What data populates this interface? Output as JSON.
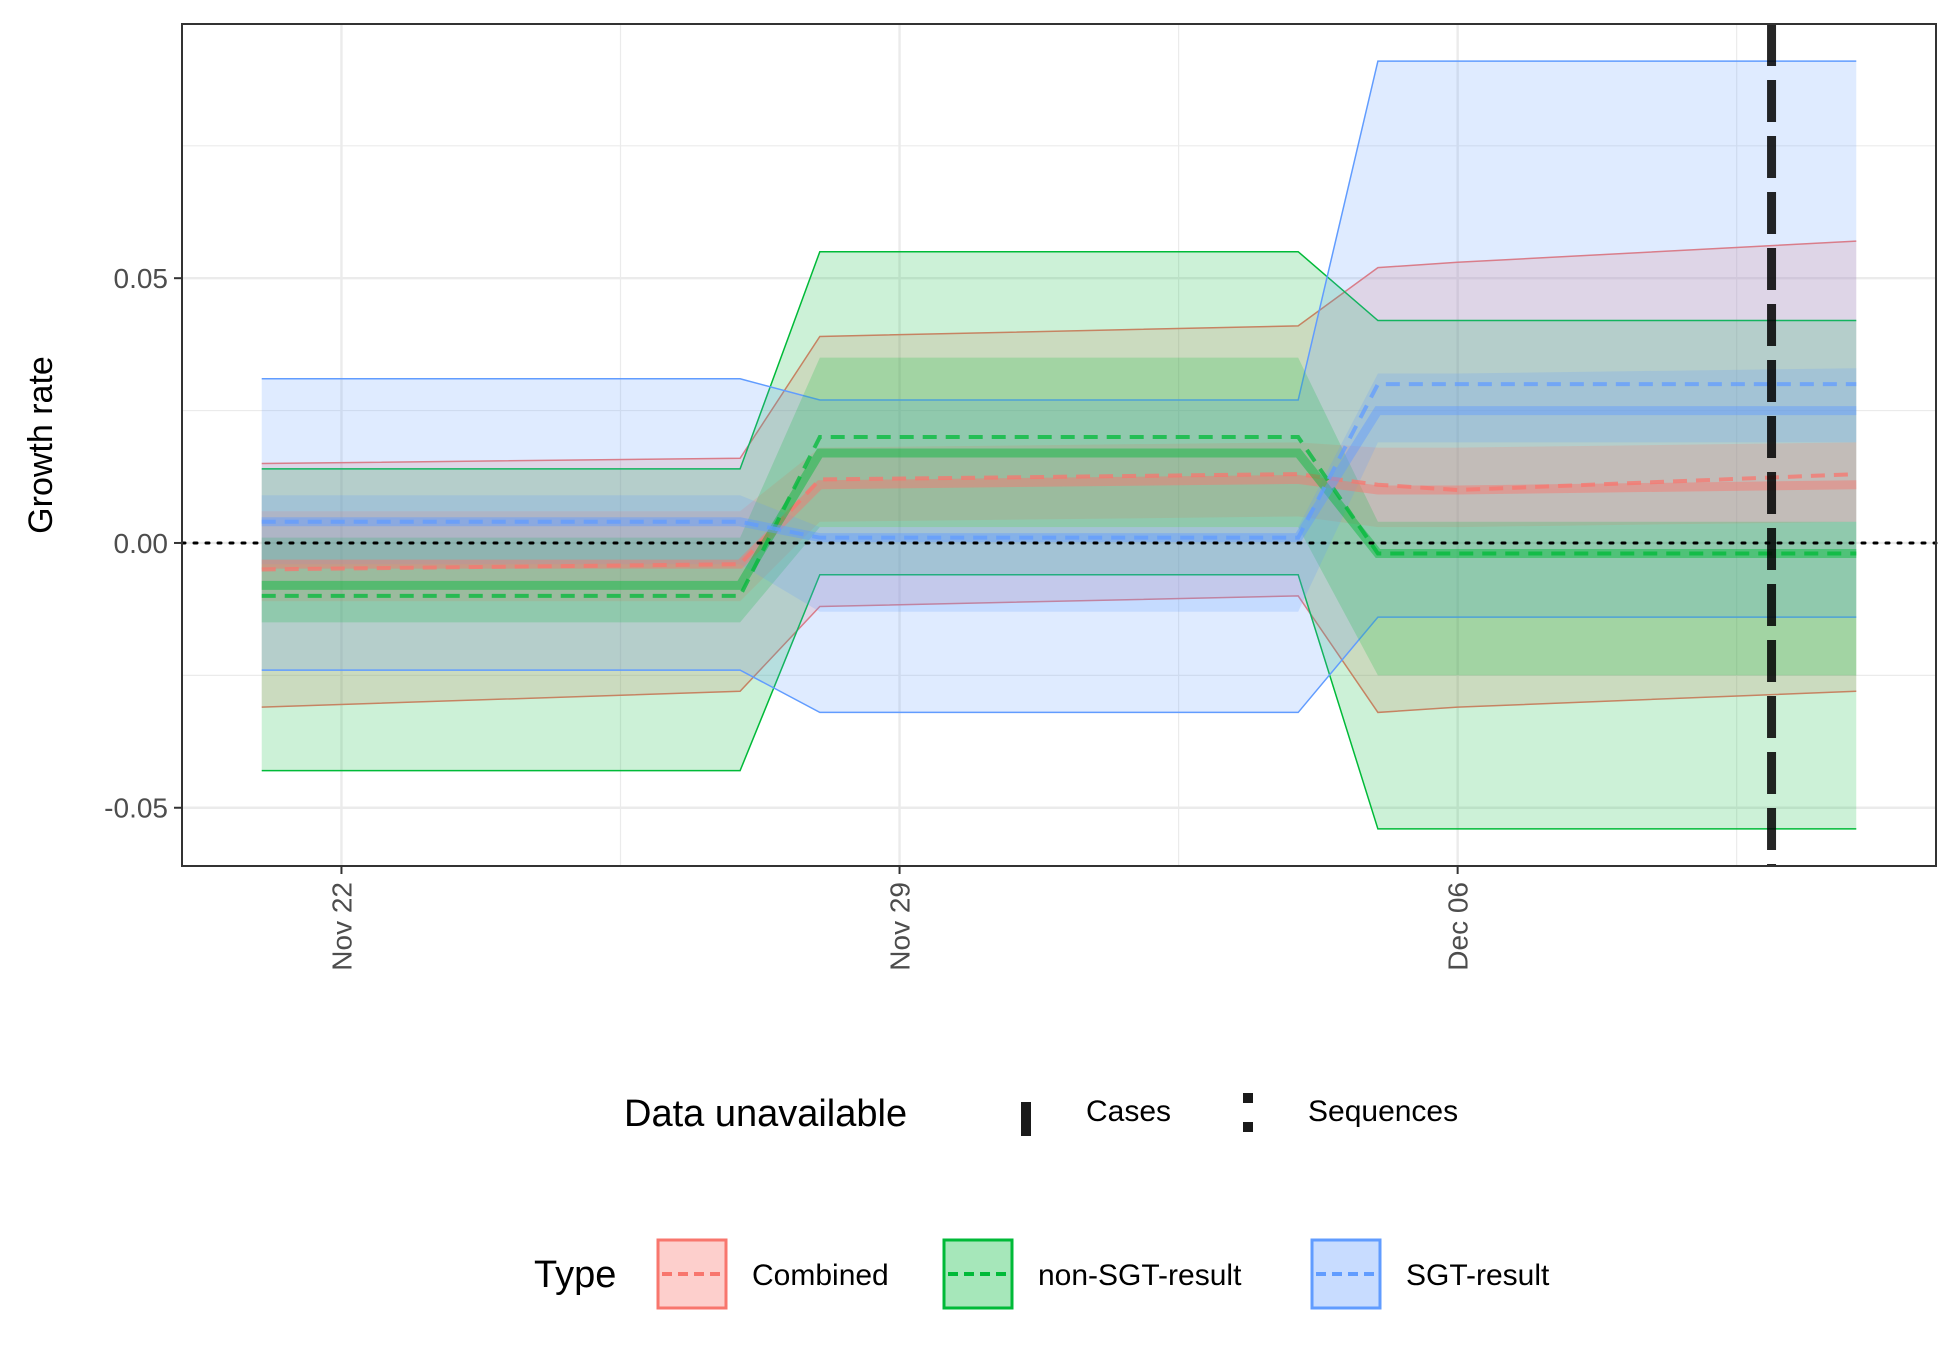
{
  "chart_data": {
    "type": "area",
    "title": "",
    "xlabel": "",
    "ylabel": "Growth rate",
    "x_tick_labels": [
      "Nov 22",
      "Nov 29",
      "Dec 06"
    ],
    "y_tick_labels": [
      "-0.05",
      "0.00",
      "0.05"
    ],
    "ylim": [
      -0.061,
      0.098
    ],
    "xlim": [
      "2021-11-20",
      "2021-12-12"
    ],
    "x": [
      "2021-11-21",
      "2021-11-27",
      "2021-11-28",
      "2021-12-04",
      "2021-12-05",
      "2021-12-06",
      "2021-12-11"
    ],
    "grid": true,
    "hline": 0,
    "series": [
      {
        "name": "Combined",
        "color": "#F8766D",
        "median": [
          -0.004,
          -0.004,
          0.011,
          0.012,
          0.01,
          0.01,
          0.011
        ],
        "mean": [
          -0.005,
          -0.004,
          0.012,
          0.013,
          0.011,
          0.01,
          0.013
        ],
        "inner_lower": [
          -0.011,
          -0.011,
          0.004,
          0.005,
          0.003,
          0.003,
          0.004
        ],
        "inner_upper": [
          0.006,
          0.006,
          0.018,
          0.019,
          0.018,
          0.018,
          0.019
        ],
        "outer_lower": [
          -0.031,
          -0.028,
          -0.012,
          -0.01,
          -0.032,
          -0.031,
          -0.028
        ],
        "outer_upper": [
          0.015,
          0.016,
          0.039,
          0.041,
          0.052,
          0.053,
          0.057
        ]
      },
      {
        "name": "non-SGT-result",
        "color": "#00BA38",
        "median": [
          -0.008,
          -0.008,
          0.017,
          0.017,
          -0.002,
          -0.002,
          -0.002
        ],
        "mean": [
          -0.01,
          -0.01,
          0.02,
          0.02,
          -0.002,
          -0.002,
          -0.002
        ],
        "inner_lower": [
          -0.015,
          -0.015,
          0.003,
          0.003,
          -0.025,
          -0.025,
          -0.025
        ],
        "inner_upper": [
          0.001,
          0.001,
          0.035,
          0.035,
          0.004,
          0.004,
          0.004
        ],
        "outer_lower": [
          -0.043,
          -0.043,
          -0.006,
          -0.006,
          -0.054,
          -0.054,
          -0.054
        ],
        "outer_upper": [
          0.014,
          0.014,
          0.055,
          0.055,
          0.042,
          0.042,
          0.042
        ]
      },
      {
        "name": "SGT-result",
        "color": "#619CFF",
        "median": [
          0.004,
          0.004,
          0.001,
          0.001,
          0.025,
          0.025,
          0.025
        ],
        "mean": [
          0.004,
          0.004,
          0.001,
          0.001,
          0.03,
          0.03,
          0.03
        ],
        "inner_lower": [
          -0.004,
          -0.004,
          -0.013,
          -0.013,
          0.019,
          0.019,
          0.019
        ],
        "inner_upper": [
          0.009,
          0.009,
          0.003,
          0.003,
          0.032,
          0.032,
          0.033
        ],
        "outer_lower": [
          -0.024,
          -0.024,
          -0.032,
          -0.032,
          -0.014,
          -0.014,
          -0.014
        ],
        "outer_upper": [
          0.031,
          0.031,
          0.027,
          0.027,
          0.091,
          0.091,
          0.091
        ]
      }
    ],
    "vlines": [
      {
        "x": "2021-12-10",
        "type": "Cases",
        "style": "dashed"
      }
    ],
    "legends": {
      "unavailable": {
        "title": "Data unavailable",
        "items": [
          {
            "label": "Cases",
            "style": "dashed"
          },
          {
            "label": "Sequences",
            "style": "dotted"
          }
        ]
      },
      "type": {
        "title": "Type",
        "items": [
          "Combined",
          "non-SGT-result",
          "SGT-result"
        ]
      }
    }
  }
}
